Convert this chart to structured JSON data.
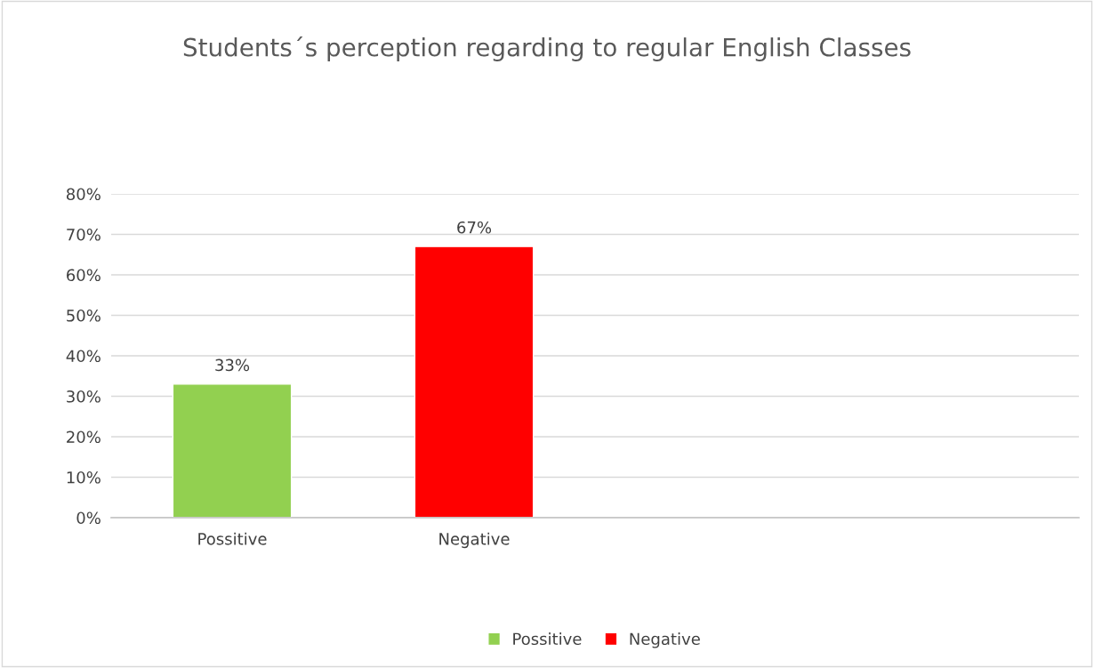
{
  "chart_data": {
    "type": "bar",
    "title": "Students´s perception regarding to regular English Classes",
    "categories": [
      "Possitive",
      "Negative",
      null,
      null
    ],
    "series": [
      {
        "name": "Possitive",
        "color": "#92d050",
        "values": [
          33,
          null,
          null,
          null
        ],
        "value_labels": [
          "33%",
          null,
          null,
          null
        ]
      },
      {
        "name": "Negative",
        "color": "#ff0000",
        "values": [
          null,
          67,
          null,
          null
        ],
        "value_labels": [
          null,
          "67%",
          null,
          null
        ]
      }
    ],
    "ylim": [
      0,
      80
    ],
    "yticks": [
      {
        "value": 0,
        "label": "0%"
      },
      {
        "value": 10,
        "label": "10%"
      },
      {
        "value": 20,
        "label": "20%"
      },
      {
        "value": 30,
        "label": "30%"
      },
      {
        "value": 40,
        "label": "40%"
      },
      {
        "value": 50,
        "label": "50%"
      },
      {
        "value": 60,
        "label": "60%"
      },
      {
        "value": 70,
        "label": "70%"
      },
      {
        "value": 80,
        "label": "80%"
      }
    ],
    "grid": "y",
    "legend": "bottom"
  }
}
